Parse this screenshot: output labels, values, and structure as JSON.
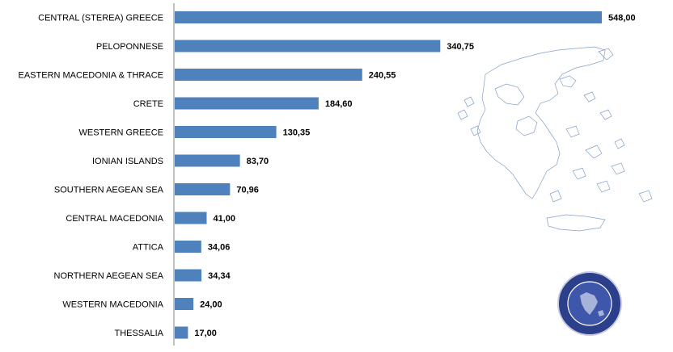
{
  "chart_data": {
    "type": "bar",
    "orientation": "horizontal",
    "title": "",
    "xlabel": "",
    "ylabel": "",
    "categories": [
      "CENTRAL (STEREA)  GREECE",
      "PELOPONNESE",
      "EASTERN MACEDONIA  & THRACE",
      "CRETE",
      "WESTERN GREECE",
      "IONIAN ISLANDS",
      "SOUTHERN  AEGEAN SEA",
      "CENTRAL MACEDONIA",
      "ATTICA",
      "NORTHERN  AEGEAN SEA",
      "WESTERN MACEDONIA",
      "THESSALIA"
    ],
    "values": [
      548.0,
      340.75,
      240.55,
      184.6,
      130.35,
      83.7,
      70.96,
      41.0,
      34.06,
      34.34,
      24.0,
      17.0
    ],
    "value_labels": [
      "548,00",
      "340,75",
      "240,55",
      "184,60",
      "130,35",
      "83,70",
      "70,96",
      "41,00",
      "34,06",
      "34,34",
      "24,00",
      "17,00"
    ],
    "xlim": [
      0,
      600
    ],
    "grid": false,
    "legend": "none",
    "bar_color": "#4f81bd"
  },
  "decorations": {
    "background_map": "greece-map-outline",
    "logo": "association-seal-logo"
  }
}
